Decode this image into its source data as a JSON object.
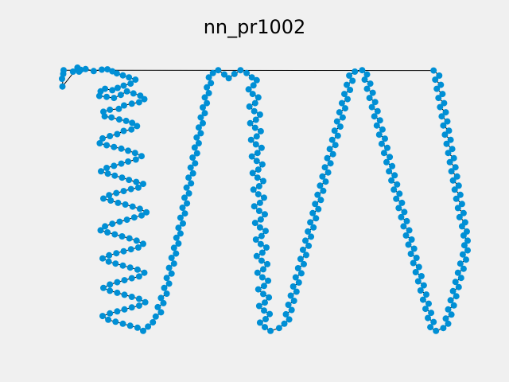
{
  "chart_data": {
    "type": "scatter",
    "title": "nn_pr1002",
    "xlabel": "",
    "ylabel": "",
    "grid": false,
    "axes_visible": false,
    "connected": true,
    "tour_closed": true,
    "colors": {
      "background": "#f0f0f0",
      "point": "#008fd5",
      "line": "#000000"
    },
    "xlim": [
      0,
      1000
    ],
    "ylim": [
      0,
      1000
    ],
    "points": [
      [
        4,
        45
      ],
      [
        0,
        75
      ],
      [
        3,
        58
      ],
      [
        1,
        102
      ],
      [
        38,
        36
      ],
      [
        42,
        50
      ],
      [
        27,
        50
      ],
      [
        46,
        44
      ],
      [
        58,
        41
      ],
      [
        78,
        48
      ],
      [
        98,
        43
      ],
      [
        112,
        42
      ],
      [
        124,
        49
      ],
      [
        135,
        56
      ],
      [
        150,
        63
      ],
      [
        165,
        70
      ],
      [
        181,
        78
      ],
      [
        169,
        92
      ],
      [
        152,
        99
      ],
      [
        137,
        107
      ],
      [
        124,
        115
      ],
      [
        106,
        110
      ],
      [
        95,
        119
      ],
      [
        92,
        135
      ],
      [
        110,
        138
      ],
      [
        128,
        142
      ],
      [
        145,
        131
      ],
      [
        160,
        119
      ],
      [
        176,
        126
      ],
      [
        193,
        134
      ],
      [
        203,
        146
      ],
      [
        190,
        157
      ],
      [
        172,
        162
      ],
      [
        153,
        168
      ],
      [
        140,
        180
      ],
      [
        118,
        183
      ],
      [
        102,
        190
      ],
      [
        105,
        206
      ],
      [
        122,
        210
      ],
      [
        141,
        217
      ],
      [
        158,
        222
      ],
      [
        173,
        229
      ],
      [
        185,
        240
      ],
      [
        171,
        252
      ],
      [
        152,
        257
      ],
      [
        136,
        268
      ],
      [
        118,
        275
      ],
      [
        100,
        283
      ],
      [
        93,
        300
      ],
      [
        110,
        307
      ],
      [
        128,
        313
      ],
      [
        146,
        319
      ],
      [
        163,
        326
      ],
      [
        180,
        334
      ],
      [
        196,
        345
      ],
      [
        182,
        357
      ],
      [
        163,
        364
      ],
      [
        146,
        371
      ],
      [
        128,
        379
      ],
      [
        110,
        386
      ],
      [
        96,
        398
      ],
      [
        113,
        406
      ],
      [
        130,
        413
      ],
      [
        148,
        420
      ],
      [
        165,
        428
      ],
      [
        183,
        435
      ],
      [
        200,
        442
      ],
      [
        188,
        455
      ],
      [
        170,
        460
      ],
      [
        152,
        467
      ],
      [
        134,
        474
      ],
      [
        116,
        481
      ],
      [
        102,
        493
      ],
      [
        120,
        500
      ],
      [
        138,
        508
      ],
      [
        156,
        514
      ],
      [
        174,
        521
      ],
      [
        192,
        529
      ],
      [
        208,
        541
      ],
      [
        196,
        552
      ],
      [
        178,
        559
      ],
      [
        160,
        567
      ],
      [
        142,
        574
      ],
      [
        124,
        581
      ],
      [
        106,
        590
      ],
      [
        95,
        604
      ],
      [
        112,
        611
      ],
      [
        130,
        618
      ],
      [
        148,
        625
      ],
      [
        166,
        632
      ],
      [
        184,
        640
      ],
      [
        200,
        651
      ],
      [
        188,
        664
      ],
      [
        170,
        670
      ],
      [
        152,
        677
      ],
      [
        134,
        684
      ],
      [
        116,
        691
      ],
      [
        100,
        702
      ],
      [
        115,
        713
      ],
      [
        132,
        720
      ],
      [
        150,
        727
      ],
      [
        168,
        734
      ],
      [
        186,
        741
      ],
      [
        203,
        752
      ],
      [
        190,
        765
      ],
      [
        172,
        771
      ],
      [
        154,
        778
      ],
      [
        136,
        785
      ],
      [
        118,
        793
      ],
      [
        102,
        805
      ],
      [
        118,
        815
      ],
      [
        136,
        822
      ],
      [
        154,
        829
      ],
      [
        172,
        836
      ],
      [
        190,
        843
      ],
      [
        205,
        855
      ],
      [
        190,
        867
      ],
      [
        172,
        873
      ],
      [
        154,
        880
      ],
      [
        136,
        887
      ],
      [
        118,
        894
      ],
      [
        100,
        903
      ],
      [
        114,
        916
      ],
      [
        132,
        923
      ],
      [
        150,
        930
      ],
      [
        168,
        937
      ],
      [
        186,
        944
      ],
      [
        200,
        955
      ],
      [
        212,
        940
      ],
      [
        224,
        925
      ],
      [
        231,
        905
      ],
      [
        244,
        890
      ],
      [
        236,
        872
      ],
      [
        250,
        858
      ],
      [
        244,
        840
      ],
      [
        258,
        825
      ],
      [
        252,
        805
      ],
      [
        264,
        790
      ],
      [
        258,
        770
      ],
      [
        270,
        755
      ],
      [
        264,
        735
      ],
      [
        276,
        720
      ],
      [
        270,
        700
      ],
      [
        281,
        685
      ],
      [
        276,
        665
      ],
      [
        287,
        650
      ],
      [
        282,
        630
      ],
      [
        292,
        615
      ],
      [
        287,
        595
      ],
      [
        298,
        580
      ],
      [
        292,
        560
      ],
      [
        303,
        545
      ],
      [
        297,
        525
      ],
      [
        308,
        510
      ],
      [
        302,
        490
      ],
      [
        313,
        475
      ],
      [
        307,
        455
      ],
      [
        318,
        440
      ],
      [
        312,
        420
      ],
      [
        323,
        405
      ],
      [
        317,
        385
      ],
      [
        328,
        370
      ],
      [
        322,
        350
      ],
      [
        333,
        335
      ],
      [
        327,
        315
      ],
      [
        337,
        300
      ],
      [
        332,
        280
      ],
      [
        342,
        265
      ],
      [
        337,
        245
      ],
      [
        347,
        230
      ],
      [
        342,
        210
      ],
      [
        352,
        195
      ],
      [
        347,
        175
      ],
      [
        357,
        160
      ],
      [
        352,
        140
      ],
      [
        362,
        125
      ],
      [
        357,
        105
      ],
      [
        367,
        90
      ],
      [
        362,
        70
      ],
      [
        372,
        55
      ],
      [
        385,
        45
      ],
      [
        400,
        60
      ],
      [
        411,
        73
      ],
      [
        425,
        58
      ],
      [
        440,
        45
      ],
      [
        455,
        55
      ],
      [
        468,
        70
      ],
      [
        480,
        80
      ],
      [
        472,
        98
      ],
      [
        460,
        112
      ],
      [
        470,
        128
      ],
      [
        484,
        140
      ],
      [
        476,
        160
      ],
      [
        462,
        172
      ],
      [
        474,
        188
      ],
      [
        488,
        200
      ],
      [
        478,
        218
      ],
      [
        464,
        230
      ],
      [
        476,
        246
      ],
      [
        490,
        258
      ],
      [
        480,
        276
      ],
      [
        466,
        288
      ],
      [
        478,
        304
      ],
      [
        492,
        316
      ],
      [
        482,
        334
      ],
      [
        468,
        346
      ],
      [
        480,
        362
      ],
      [
        494,
        374
      ],
      [
        484,
        392
      ],
      [
        470,
        404
      ],
      [
        482,
        420
      ],
      [
        496,
        432
      ],
      [
        486,
        450
      ],
      [
        472,
        462
      ],
      [
        484,
        478
      ],
      [
        498,
        490
      ],
      [
        488,
        508
      ],
      [
        474,
        520
      ],
      [
        486,
        536
      ],
      [
        500,
        548
      ],
      [
        490,
        566
      ],
      [
        476,
        578
      ],
      [
        488,
        594
      ],
      [
        502,
        606
      ],
      [
        492,
        624
      ],
      [
        478,
        636
      ],
      [
        490,
        652
      ],
      [
        504,
        664
      ],
      [
        494,
        682
      ],
      [
        480,
        694
      ],
      [
        492,
        710
      ],
      [
        506,
        722
      ],
      [
        496,
        740
      ],
      [
        482,
        752
      ],
      [
        494,
        768
      ],
      [
        508,
        780
      ],
      [
        498,
        798
      ],
      [
        484,
        810
      ],
      [
        496,
        826
      ],
      [
        510,
        838
      ],
      [
        500,
        856
      ],
      [
        486,
        868
      ],
      [
        498,
        884
      ],
      [
        512,
        896
      ],
      [
        502,
        914
      ],
      [
        488,
        926
      ],
      [
        500,
        942
      ],
      [
        514,
        955
      ],
      [
        535,
        945
      ],
      [
        548,
        930
      ],
      [
        560,
        915
      ],
      [
        552,
        897
      ],
      [
        566,
        882
      ],
      [
        558,
        864
      ],
      [
        572,
        850
      ],
      [
        564,
        832
      ],
      [
        578,
        818
      ],
      [
        570,
        800
      ],
      [
        584,
        786
      ],
      [
        576,
        768
      ],
      [
        590,
        754
      ],
      [
        582,
        736
      ],
      [
        596,
        722
      ],
      [
        588,
        704
      ],
      [
        602,
        690
      ],
      [
        594,
        672
      ],
      [
        608,
        658
      ],
      [
        600,
        640
      ],
      [
        614,
        626
      ],
      [
        606,
        608
      ],
      [
        620,
        594
      ],
      [
        612,
        576
      ],
      [
        626,
        562
      ],
      [
        618,
        544
      ],
      [
        632,
        530
      ],
      [
        624,
        512
      ],
      [
        638,
        498
      ],
      [
        630,
        480
      ],
      [
        644,
        466
      ],
      [
        636,
        448
      ],
      [
        650,
        434
      ],
      [
        642,
        416
      ],
      [
        656,
        402
      ],
      [
        648,
        384
      ],
      [
        662,
        370
      ],
      [
        654,
        352
      ],
      [
        668,
        338
      ],
      [
        660,
        320
      ],
      [
        674,
        306
      ],
      [
        666,
        288
      ],
      [
        680,
        274
      ],
      [
        672,
        256
      ],
      [
        686,
        242
      ],
      [
        678,
        224
      ],
      [
        692,
        210
      ],
      [
        684,
        192
      ],
      [
        698,
        178
      ],
      [
        690,
        160
      ],
      [
        704,
        146
      ],
      [
        696,
        128
      ],
      [
        710,
        114
      ],
      [
        702,
        96
      ],
      [
        716,
        82
      ],
      [
        708,
        64
      ],
      [
        722,
        50
      ],
      [
        740,
        45
      ],
      [
        752,
        60
      ],
      [
        746,
        78
      ],
      [
        760,
        92
      ],
      [
        752,
        110
      ],
      [
        766,
        124
      ],
      [
        758,
        142
      ],
      [
        772,
        156
      ],
      [
        764,
        174
      ],
      [
        778,
        188
      ],
      [
        770,
        206
      ],
      [
        784,
        220
      ],
      [
        776,
        238
      ],
      [
        790,
        252
      ],
      [
        782,
        270
      ],
      [
        796,
        284
      ],
      [
        788,
        302
      ],
      [
        802,
        316
      ],
      [
        794,
        334
      ],
      [
        808,
        348
      ],
      [
        800,
        366
      ],
      [
        814,
        380
      ],
      [
        806,
        398
      ],
      [
        820,
        412
      ],
      [
        812,
        430
      ],
      [
        826,
        444
      ],
      [
        818,
        462
      ],
      [
        832,
        476
      ],
      [
        824,
        494
      ],
      [
        838,
        508
      ],
      [
        830,
        526
      ],
      [
        844,
        540
      ],
      [
        836,
        558
      ],
      [
        850,
        572
      ],
      [
        842,
        590
      ],
      [
        856,
        604
      ],
      [
        848,
        622
      ],
      [
        862,
        636
      ],
      [
        854,
        654
      ],
      [
        868,
        668
      ],
      [
        860,
        686
      ],
      [
        874,
        700
      ],
      [
        866,
        718
      ],
      [
        880,
        732
      ],
      [
        872,
        750
      ],
      [
        886,
        764
      ],
      [
        878,
        782
      ],
      [
        892,
        796
      ],
      [
        884,
        814
      ],
      [
        898,
        828
      ],
      [
        890,
        846
      ],
      [
        904,
        860
      ],
      [
        896,
        878
      ],
      [
        910,
        892
      ],
      [
        902,
        910
      ],
      [
        916,
        924
      ],
      [
        908,
        942
      ],
      [
        922,
        955
      ],
      [
        940,
        945
      ],
      [
        952,
        930
      ],
      [
        946,
        912
      ],
      [
        960,
        898
      ],
      [
        952,
        880
      ],
      [
        966,
        866
      ],
      [
        958,
        848
      ],
      [
        972,
        834
      ],
      [
        964,
        816
      ],
      [
        978,
        802
      ],
      [
        970,
        784
      ],
      [
        984,
        770
      ],
      [
        976,
        752
      ],
      [
        990,
        738
      ],
      [
        982,
        720
      ],
      [
        996,
        706
      ],
      [
        988,
        688
      ],
      [
        1000,
        674
      ],
      [
        992,
        656
      ],
      [
        1000,
        640
      ],
      [
        990,
        622
      ],
      [
        998,
        608
      ],
      [
        986,
        590
      ],
      [
        994,
        576
      ],
      [
        980,
        558
      ],
      [
        990,
        544
      ],
      [
        976,
        526
      ],
      [
        986,
        512
      ],
      [
        972,
        494
      ],
      [
        982,
        480
      ],
      [
        968,
        462
      ],
      [
        978,
        448
      ],
      [
        964,
        430
      ],
      [
        974,
        416
      ],
      [
        960,
        398
      ],
      [
        970,
        384
      ],
      [
        956,
        366
      ],
      [
        966,
        352
      ],
      [
        952,
        334
      ],
      [
        962,
        320
      ],
      [
        948,
        302
      ],
      [
        958,
        288
      ],
      [
        944,
        270
      ],
      [
        954,
        256
      ],
      [
        940,
        238
      ],
      [
        950,
        224
      ],
      [
        936,
        206
      ],
      [
        946,
        192
      ],
      [
        932,
        174
      ],
      [
        942,
        160
      ],
      [
        928,
        142
      ],
      [
        938,
        128
      ],
      [
        924,
        110
      ],
      [
        934,
        96
      ],
      [
        920,
        78
      ],
      [
        930,
        64
      ],
      [
        916,
        46
      ]
    ]
  }
}
